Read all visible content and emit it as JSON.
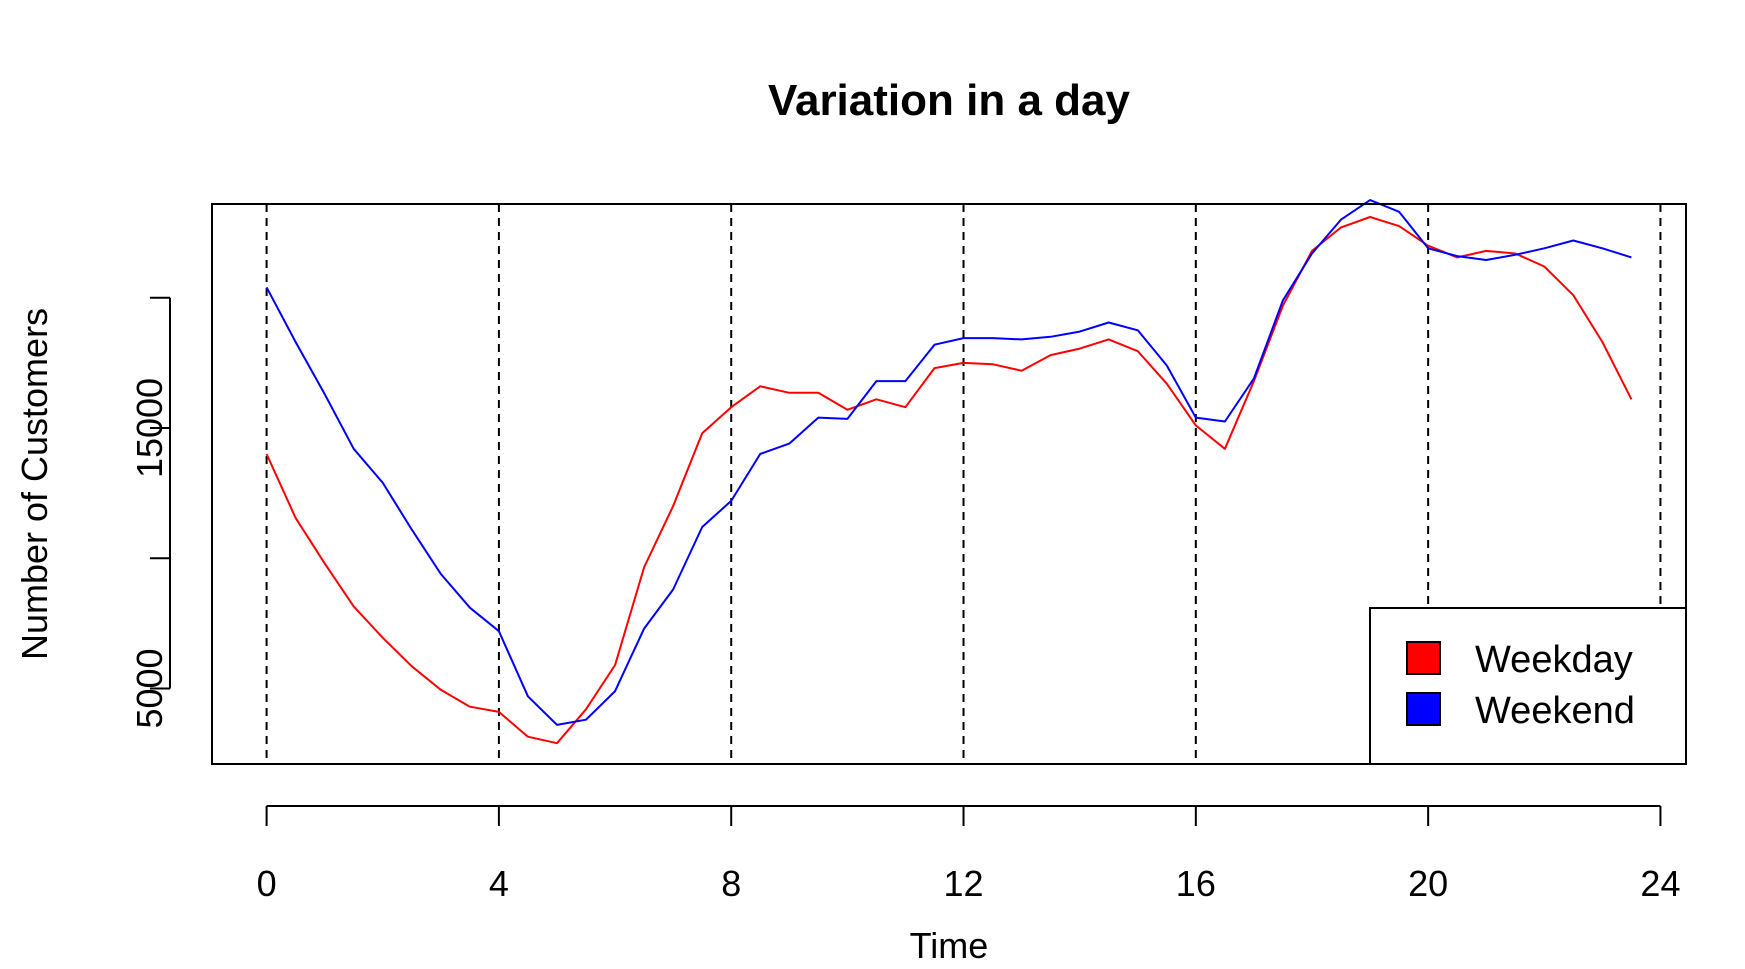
{
  "chart_data": {
    "type": "line",
    "title": "Variation in a day",
    "xlabel": "Time",
    "ylabel": "Number of Customers",
    "xlim": [
      -0.94,
      24.44
    ],
    "ylim": [
      2100,
      23600
    ],
    "x_ticks": [
      {
        "value": 0,
        "label": "0"
      },
      {
        "value": 4,
        "label": "4"
      },
      {
        "value": 8,
        "label": "8"
      },
      {
        "value": 12,
        "label": "12"
      },
      {
        "value": 16,
        "label": "16"
      },
      {
        "value": 20,
        "label": "20"
      },
      {
        "value": 24,
        "label": "24"
      }
    ],
    "y_ticks": [
      {
        "value": 5000,
        "label": "5000"
      },
      {
        "value": 10000,
        "label": ""
      },
      {
        "value": 15000,
        "label": "15000"
      },
      {
        "value": 20000,
        "label": ""
      }
    ],
    "vlines": [
      0,
      4,
      8,
      12,
      16,
      20,
      24
    ],
    "legend": {
      "position": "bottom-right"
    },
    "series": [
      {
        "name": "Weekday",
        "color": "#ff0000",
        "x": [
          0,
          0.5,
          1,
          1.5,
          2,
          2.5,
          3,
          3.5,
          4,
          4.5,
          5,
          5.5,
          6,
          6.5,
          7,
          7.5,
          8,
          8.5,
          9,
          9.5,
          10,
          10.5,
          11,
          11.5,
          12,
          12.5,
          13,
          13.5,
          14,
          14.5,
          15,
          15.5,
          16,
          16.5,
          17,
          17.5,
          18,
          18.5,
          19,
          19.5,
          20,
          20.5,
          21,
          21.5,
          22,
          22.5,
          23,
          23.5
        ],
        "values": [
          14000,
          11550,
          9800,
          8150,
          6950,
          5850,
          4950,
          4300,
          4100,
          3150,
          2900,
          4200,
          5900,
          9650,
          12000,
          14800,
          15800,
          16600,
          16350,
          16350,
          15700,
          16100,
          15800,
          17300,
          17500,
          17450,
          17200,
          17800,
          18050,
          18400,
          17950,
          16700,
          15100,
          14200,
          16800,
          19700,
          21800,
          22700,
          23100,
          22750,
          22000,
          21550,
          21800,
          21700,
          21200,
          20100,
          18300,
          16100
        ]
      },
      {
        "name": "Weekend",
        "color": "#0000ff",
        "x": [
          0,
          0.5,
          1,
          1.5,
          2,
          2.5,
          3,
          3.5,
          4,
          4.5,
          5,
          5.5,
          6,
          6.5,
          7,
          7.5,
          8,
          8.5,
          9,
          9.5,
          10,
          10.5,
          11,
          11.5,
          12,
          12.5,
          13,
          13.5,
          14,
          14.5,
          15,
          15.5,
          16,
          16.5,
          17,
          17.5,
          18,
          18.5,
          19,
          19.5,
          20,
          20.5,
          21,
          21.5,
          22,
          22.5,
          23,
          23.5
        ],
        "values": [
          20400,
          18300,
          16300,
          14200,
          12900,
          11100,
          9400,
          8100,
          7200,
          4700,
          3600,
          3800,
          4900,
          7300,
          8800,
          11200,
          12200,
          14000,
          14400,
          15400,
          15350,
          16800,
          16800,
          18200,
          18450,
          18450,
          18400,
          18500,
          18700,
          19050,
          18750,
          17400,
          15400,
          15250,
          16900,
          19900,
          21700,
          23000,
          23750,
          23300,
          21900,
          21600,
          21450,
          21650,
          21900,
          22200,
          21900,
          21550
        ]
      }
    ]
  }
}
